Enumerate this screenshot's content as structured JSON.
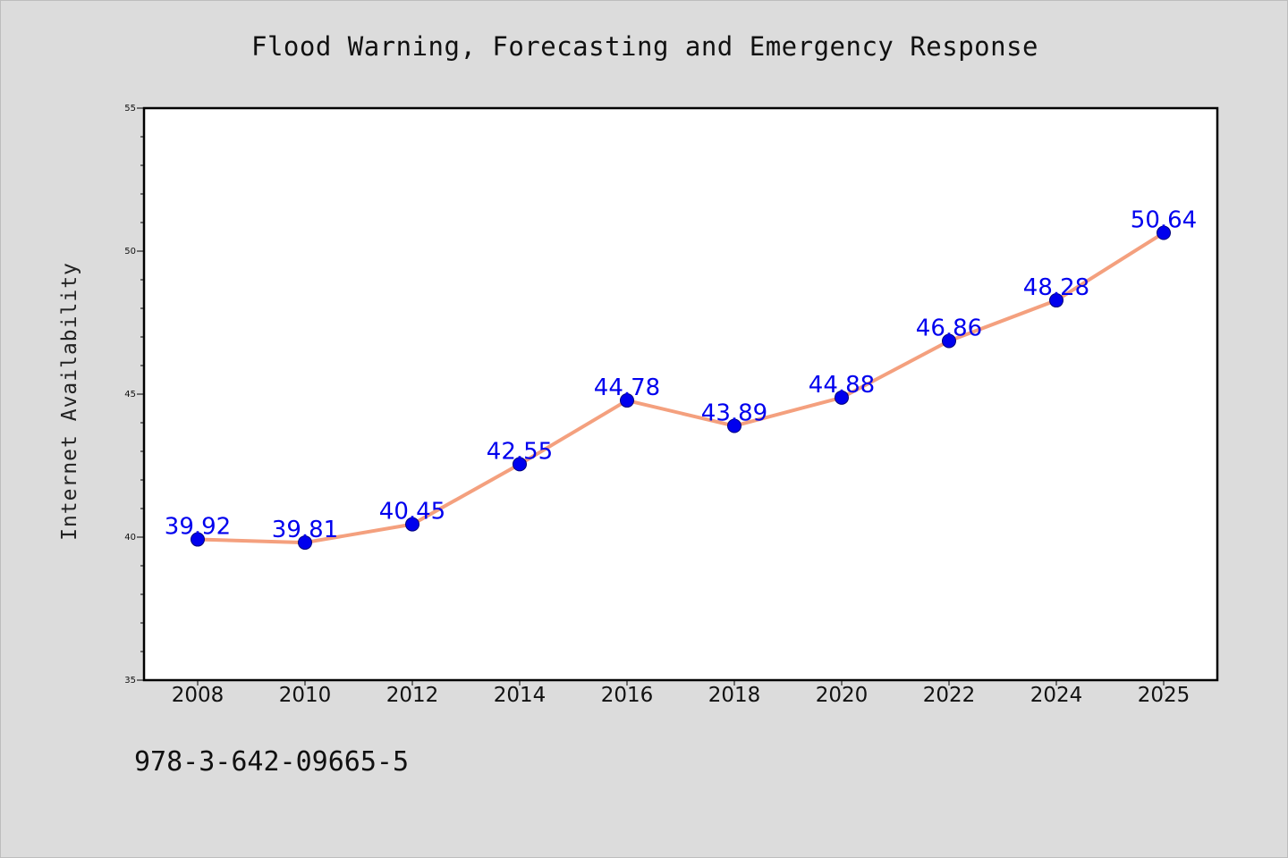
{
  "chart_data": {
    "type": "line",
    "title": "Flood Warning, Forecasting and Emergency Response",
    "xlabel": "",
    "ylabel": "Internet Availability",
    "categories": [
      "2008",
      "2010",
      "2012",
      "2014",
      "2016",
      "2018",
      "2020",
      "2022",
      "2024",
      "2025"
    ],
    "series": [
      {
        "values": [
          39.92,
          39.81,
          40.45,
          42.55,
          44.78,
          43.89,
          44.88,
          46.86,
          48.28,
          50.64
        ],
        "labels": [
          "39.92",
          "39.81",
          "40.45",
          "42.55",
          "44.78",
          "43.89",
          "44.88",
          "46.86",
          "48.28",
          "50.64"
        ],
        "line_color": "#f4a07e",
        "marker_color": "#0000ee",
        "label_color": "#0000ee"
      }
    ],
    "ylim": [
      35,
      55
    ],
    "yticks": [
      35,
      40,
      45,
      50,
      55
    ],
    "ytick_labels": [
      "35",
      "40",
      "45",
      "50",
      "55"
    ],
    "y_minor_step": 1,
    "grid": false,
    "legend": "none",
    "plot_background": "#ffffff",
    "figure_background": "#dcdcdc"
  },
  "annotation": {
    "text": "978-3-642-09665-5"
  }
}
